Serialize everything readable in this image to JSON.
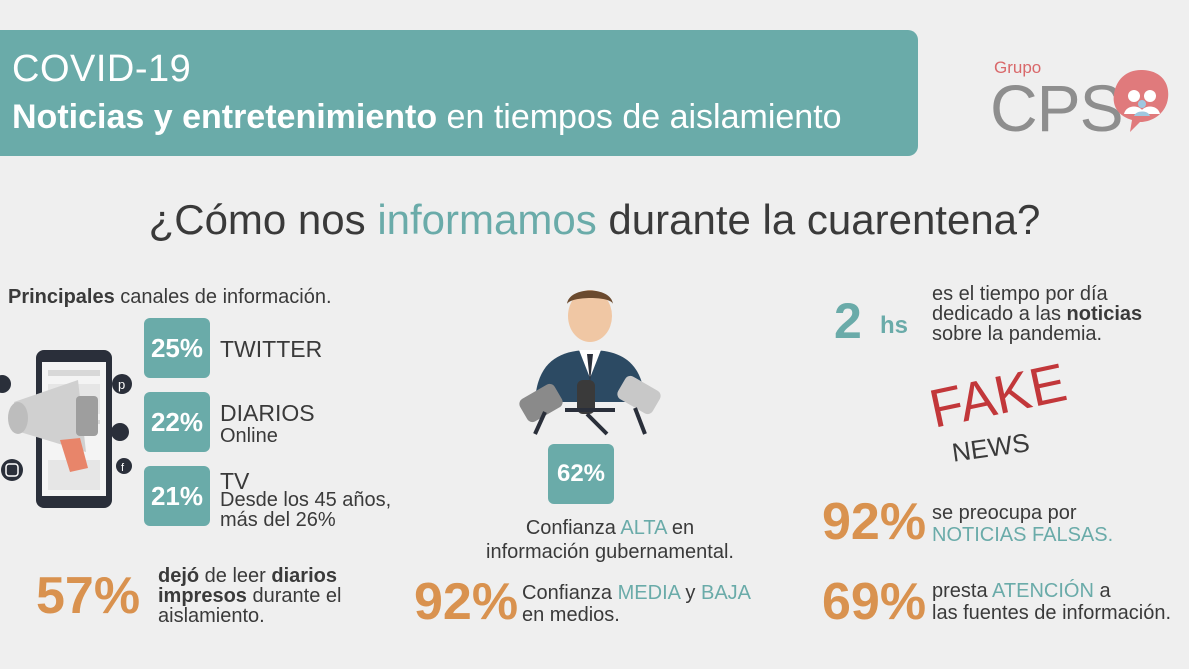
{
  "header": {
    "title": "COVID-19",
    "subtitle_bold": "Noticias y entretenimiento",
    "subtitle_rest": " en tiempos de aislamiento"
  },
  "logo": {
    "small": "Grupo",
    "big": "CPS"
  },
  "main_title": {
    "pre": "¿Cómo nos ",
    "highlight": "informamos",
    "post": " durante la cuarentena?"
  },
  "channels": {
    "heading_bold": "Principales",
    "heading_rest": " canales de información.",
    "items": [
      {
        "percent": "25%",
        "name": "TWITTER",
        "sub": ""
      },
      {
        "percent": "22%",
        "name": "DIARIOS",
        "sub": "Online"
      },
      {
        "percent": "21%",
        "name": "TV",
        "sub_line1": "Desde los 45 años,",
        "sub_line2": "más del 26%"
      }
    ]
  },
  "stat57": {
    "percent": "57%",
    "t1": "dejó",
    "t2": " de leer ",
    "t3": "diarios",
    "t4": "impresos",
    "t5": " durante el",
    "t6": "aislamiento."
  },
  "confianza_alta": {
    "percent": "62%",
    "l1a": "Confianza ",
    "l1b": "ALTA",
    "l1c": " en",
    "l2": "información gubernamental."
  },
  "confianza_media": {
    "percent": "92%",
    "a": "Confianza ",
    "b": "MEDIA",
    "c": " y ",
    "d": "BAJA",
    "e": "en medios."
  },
  "time_stat": {
    "number": "2",
    "unit": "hs",
    "l1": "es el tiempo por día",
    "l2a": "dedicado a las ",
    "l2b": "noticias",
    "l3": "sobre la pandemia."
  },
  "fake_news": {
    "fake": "FAKE",
    "news": "NEWS"
  },
  "preocupa": {
    "percent": "92%",
    "l1": "se preocupa por",
    "l2": "NOTICIAS FALSAS."
  },
  "atencion": {
    "percent": "69%",
    "l1a": "presta ",
    "l1b": "ATENCIÓN",
    "l1c": " a",
    "l2": "las fuentes de información."
  },
  "colors": {
    "teal": "#6aaba9",
    "orange": "#d9924f",
    "red": "#c2373a",
    "dark_text": "#3a3a3a"
  },
  "icons": [
    "megaphone-icon",
    "smartphone-icon",
    "twitter-icon",
    "instagram-icon",
    "facebook-icon",
    "pinterest-icon",
    "whatsapp-icon",
    "speaker-person-icon",
    "microphone-icon",
    "cps-logo-mark"
  ]
}
